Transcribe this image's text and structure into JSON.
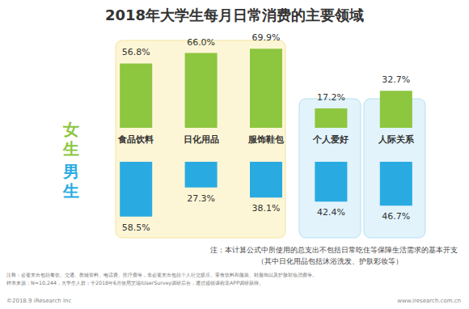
{
  "chart_data": {
    "type": "bar",
    "title": "2018年大学生每月日常消费的主要领域",
    "categories": [
      "食品饮料",
      "日化用品",
      "服饰鞋包",
      "个人爱好",
      "人际关系"
    ],
    "series": [
      {
        "name": "女生",
        "color": "#8dc63f",
        "values": [
          56.8,
          66.0,
          69.9,
          17.2,
          32.7
        ],
        "value_labels": [
          "56.8%",
          "66.0%",
          "69.9%",
          "17.2%",
          "32.7%"
        ]
      },
      {
        "name": "男生",
        "color": "#29abe2",
        "values": [
          58.5,
          27.3,
          38.1,
          42.4,
          46.7
        ],
        "value_labels": [
          "58.5%",
          "27.3%",
          "38.1%",
          "42.4%",
          "46.7%"
        ]
      }
    ],
    "ylim": [
      0,
      100
    ],
    "data_labels": true,
    "tick_labels": "x",
    "grid": false,
    "annotations": [
      "注：本计算公式中所使用的总支出不包括日常吃住等保障生活需求的基本开支",
      "（其中日化用品包括沐浴洗发、护肤彩妆等）",
      "注释：必要支出包括餐饮、交通、教辅资料、电话费、医疗费等，非必要支出包括个人社交娱乐、零食饮料和服装、鞋服饰以及护肤彩妆消费等。",
      "样本来源：N=10,244，大学生人群；于2018年6月使用艾瑞iUserSurvey调研后台，通过超级课程表APP调研获得。",
      "©2018.9 iResearch Inc",
      "www.iresearch.com.cn"
    ]
  }
}
